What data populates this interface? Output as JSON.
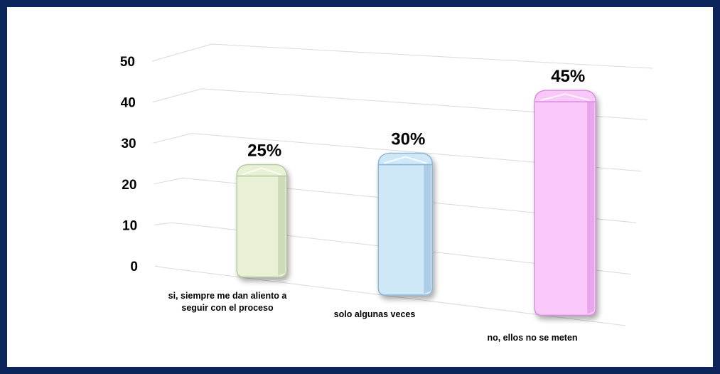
{
  "chart_data": {
    "type": "bar",
    "categories": [
      [
        "si, siempre me dan aliento a",
        "seguir con el proceso"
      ],
      [
        "solo algunas veces"
      ],
      [
        "no, ellos no se meten"
      ]
    ],
    "values": [
      25,
      30,
      45
    ],
    "data_labels": [
      "25%",
      "30%",
      "45%"
    ],
    "y_ticks": [
      "0",
      "10",
      "20",
      "30",
      "40",
      "50"
    ],
    "ylim": [
      0,
      50
    ],
    "grid": true,
    "three_d": true,
    "colors": [
      "#e8f0d6",
      "#cfe8f8",
      "#f8c8f8"
    ],
    "edge_colors": [
      "#b9c9a0",
      "#8fb7d6",
      "#d98ee0"
    ]
  },
  "colors": {
    "frame": "#0b2459",
    "gridline": "#d9d9d9"
  }
}
